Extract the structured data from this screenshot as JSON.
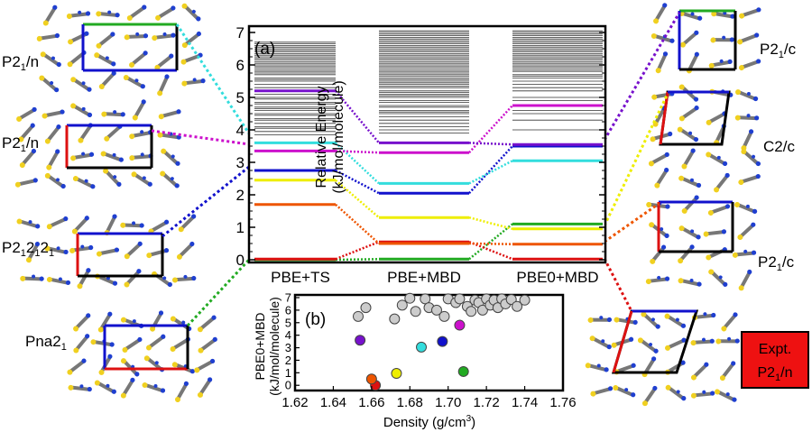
{
  "figure": {
    "panel_a_label": "(a)",
    "panel_b_label": "(b)",
    "expt_label_line1": "Expt.",
    "expt_label_line2": "P2",
    "expt_label_sub": "1",
    "expt_label_tail": "/n",
    "colors": {
      "green": "#22aa22",
      "red": "#dd1111",
      "orange": "#ee5500",
      "yellow": "#eeee00",
      "blue": "#1111cc",
      "cyan": "#33dddd",
      "magenta": "#cc11cc",
      "purple": "#7711cc",
      "grey": "#cccccc",
      "expt_box": "#ee1111"
    },
    "left_structures": [
      {
        "label": "P2",
        "sub": "1",
        "tail": "/n",
        "color": "#33dddd",
        "box_edges": [
          "#22aa22",
          "#1111cc",
          "#000000"
        ]
      },
      {
        "label": "P2",
        "sub": "1",
        "tail": "/n",
        "color": "#cc11cc",
        "box_edges": [
          "#1111cc",
          "#dd1111",
          "#000000"
        ]
      },
      {
        "label": "P2",
        "sub": "1",
        "tail": "2",
        "sub2": "1",
        "tail2": "2",
        "sub3": "1",
        "color": "#1111cc",
        "box_edges": [
          "#1111cc",
          "#dd1111",
          "#000000"
        ]
      },
      {
        "label": "Pna2",
        "sub": "1",
        "tail": "",
        "color": "#22aa22",
        "box_edges": [
          "#1111cc",
          "#dd1111",
          "#000000"
        ]
      }
    ],
    "right_structures": [
      {
        "label": "P2",
        "sub": "1",
        "tail": "/c",
        "color": "#7711cc"
      },
      {
        "label": "C2/c",
        "sub": "",
        "tail": "",
        "color": "#eeee00"
      },
      {
        "label": "P2",
        "sub": "1",
        "tail": "/c",
        "color": "#ee5500"
      }
    ]
  },
  "chart_data": [
    {
      "type": "line",
      "panel": "a",
      "ylabel_line1": "Relative Energy",
      "ylabel_line2": "(kJ/mol/molecule)",
      "ylim": [
        0,
        7
      ],
      "yticks": [
        "0",
        "1",
        "2",
        "3",
        "4",
        "5",
        "6",
        "7"
      ],
      "categories": [
        "PBE+TS",
        "PBE+MBD",
        "PBE0+MBD"
      ],
      "highlighted": [
        {
          "color": "#22aa22",
          "values": [
            0.0,
            0.02,
            1.1
          ]
        },
        {
          "color": "#dd1111",
          "values": [
            0.02,
            0.55,
            0.02
          ]
        },
        {
          "color": "#ee5500",
          "values": [
            1.7,
            0.5,
            0.48
          ]
        },
        {
          "color": "#eeee00",
          "values": [
            2.45,
            1.3,
            0.95
          ]
        },
        {
          "color": "#1111cc",
          "values": [
            2.75,
            2.05,
            3.5
          ]
        },
        {
          "color": "#33dddd",
          "values": [
            3.6,
            2.35,
            3.05
          ]
        },
        {
          "color": "#cc11cc",
          "values": [
            3.35,
            3.3,
            4.75
          ]
        },
        {
          "color": "#7711cc",
          "values": [
            5.2,
            3.6,
            3.55
          ]
        }
      ],
      "background_levels": {
        "PBE+TS": [
          3.85,
          3.95,
          4.05,
          4.1,
          4.2,
          4.3,
          4.35,
          4.45,
          4.5,
          4.6,
          4.65,
          4.7,
          4.8,
          4.85,
          4.95,
          5.0,
          5.1,
          5.3,
          5.4,
          5.5,
          5.55,
          5.6,
          5.7,
          5.75,
          5.8,
          5.85,
          5.9,
          5.95,
          6.0,
          6.05,
          6.1,
          6.15,
          6.2,
          6.25,
          6.3,
          6.35,
          6.4,
          6.45,
          6.5,
          6.55,
          6.6,
          6.65,
          6.7
        ],
        "PBE+MBD": [
          3.9,
          4.0,
          4.1,
          4.2,
          4.3,
          4.4,
          4.5,
          4.55,
          4.6,
          4.7,
          4.75,
          4.85,
          4.9,
          5.0,
          5.05,
          5.1,
          5.15,
          5.2,
          5.3,
          5.35,
          5.4,
          5.45,
          5.5,
          5.55,
          5.6,
          5.65,
          5.7,
          5.75,
          5.8,
          5.85,
          5.9,
          5.95,
          6.0,
          6.05,
          6.1,
          6.15,
          6.2,
          6.25,
          6.3,
          6.35,
          6.4,
          6.45,
          6.5,
          6.55,
          6.6,
          6.65,
          6.7,
          6.75,
          6.8,
          6.85,
          6.9,
          6.95,
          7.0,
          7.05
        ],
        "PBE0+MBD": [
          4.0,
          4.3,
          4.5,
          4.6,
          4.9,
          5.0,
          5.2,
          5.3,
          5.4,
          5.5,
          5.6,
          5.65,
          5.7,
          5.8,
          5.85,
          5.9,
          5.95,
          6.0,
          6.05,
          6.1,
          6.15,
          6.2,
          6.25,
          6.3,
          6.35,
          6.4,
          6.45,
          6.5,
          6.55,
          6.6,
          6.65,
          6.7,
          6.75,
          6.8,
          6.85,
          6.9,
          6.95,
          7.0,
          7.05
        ]
      }
    },
    {
      "type": "scatter",
      "panel": "b",
      "xlabel": "Density (g/cm",
      "xlabel_sup": "3",
      "xlabel_tail": ")",
      "ylabel_line1": "PBE0+MBD",
      "ylabel_line2": "(kJ/mol/molecule)",
      "xlim": [
        1.62,
        1.76
      ],
      "ylim": [
        -0.2,
        7
      ],
      "xticks": [
        "1.62",
        "1.64",
        "1.66",
        "1.68",
        "1.70",
        "1.72",
        "1.74",
        "1.76"
      ],
      "yticks": [
        "0",
        "1",
        "2",
        "3",
        "4",
        "5",
        "6",
        "7"
      ],
      "points": [
        {
          "x": 1.662,
          "y": 0.0,
          "color": "#dd1111"
        },
        {
          "x": 1.66,
          "y": 0.5,
          "color": "#ee5500"
        },
        {
          "x": 1.673,
          "y": 0.95,
          "color": "#eeee00"
        },
        {
          "x": 1.708,
          "y": 1.1,
          "color": "#22aa22"
        },
        {
          "x": 1.686,
          "y": 3.05,
          "color": "#33dddd"
        },
        {
          "x": 1.697,
          "y": 3.5,
          "color": "#1111cc"
        },
        {
          "x": 1.654,
          "y": 3.6,
          "color": "#7711cc"
        },
        {
          "x": 1.706,
          "y": 4.8,
          "color": "#cc11cc"
        },
        {
          "x": 1.653,
          "y": 5.5,
          "color": "#cccccc"
        },
        {
          "x": 1.657,
          "y": 6.2,
          "color": "#cccccc"
        },
        {
          "x": 1.672,
          "y": 5.3,
          "color": "#cccccc"
        },
        {
          "x": 1.676,
          "y": 6.4,
          "color": "#cccccc"
        },
        {
          "x": 1.68,
          "y": 6.95,
          "color": "#cccccc"
        },
        {
          "x": 1.683,
          "y": 5.9,
          "color": "#cccccc"
        },
        {
          "x": 1.688,
          "y": 6.9,
          "color": "#cccccc"
        },
        {
          "x": 1.69,
          "y": 6.2,
          "color": "#cccccc"
        },
        {
          "x": 1.694,
          "y": 6.0,
          "color": "#cccccc"
        },
        {
          "x": 1.698,
          "y": 5.5,
          "color": "#cccccc"
        },
        {
          "x": 1.7,
          "y": 6.9,
          "color": "#cccccc"
        },
        {
          "x": 1.704,
          "y": 6.6,
          "color": "#cccccc"
        },
        {
          "x": 1.706,
          "y": 6.9,
          "color": "#cccccc"
        },
        {
          "x": 1.71,
          "y": 6.3,
          "color": "#cccccc"
        },
        {
          "x": 1.712,
          "y": 5.9,
          "color": "#cccccc"
        },
        {
          "x": 1.714,
          "y": 6.8,
          "color": "#cccccc"
        },
        {
          "x": 1.716,
          "y": 6.6,
          "color": "#cccccc"
        },
        {
          "x": 1.718,
          "y": 6.0,
          "color": "#cccccc"
        },
        {
          "x": 1.72,
          "y": 6.9,
          "color": "#cccccc"
        },
        {
          "x": 1.722,
          "y": 6.4,
          "color": "#cccccc"
        },
        {
          "x": 1.724,
          "y": 6.8,
          "color": "#cccccc"
        },
        {
          "x": 1.726,
          "y": 6.2,
          "color": "#cccccc"
        },
        {
          "x": 1.728,
          "y": 6.9,
          "color": "#cccccc"
        },
        {
          "x": 1.73,
          "y": 6.5,
          "color": "#cccccc"
        },
        {
          "x": 1.733,
          "y": 6.85,
          "color": "#cccccc"
        },
        {
          "x": 1.736,
          "y": 6.3,
          "color": "#cccccc"
        },
        {
          "x": 1.74,
          "y": 6.8,
          "color": "#cccccc"
        }
      ]
    }
  ]
}
